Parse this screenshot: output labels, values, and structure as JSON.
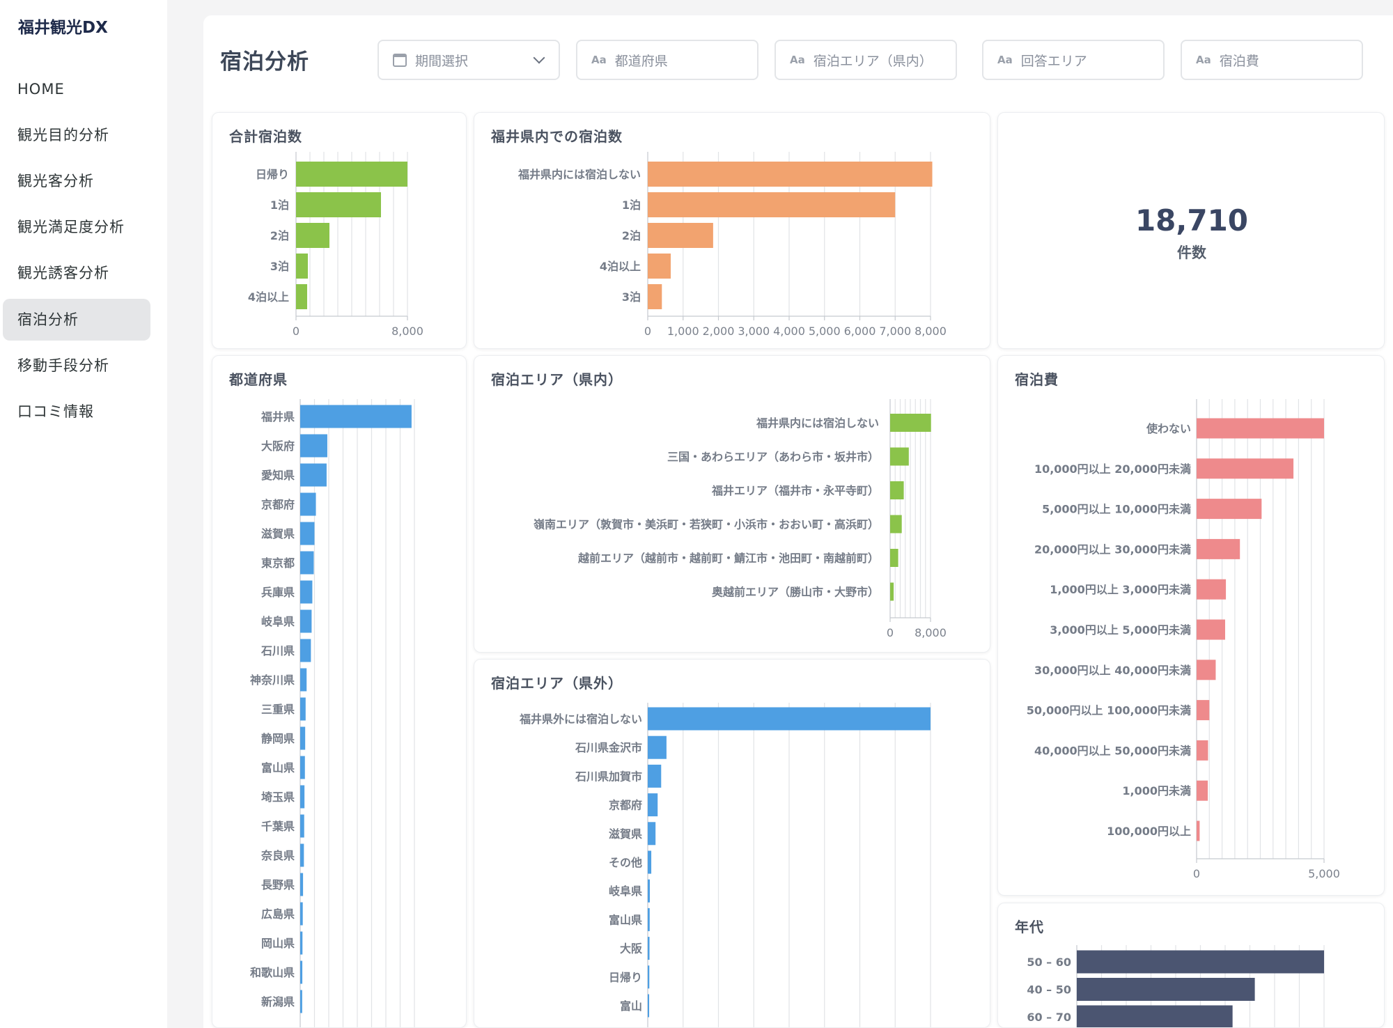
{
  "app": {
    "brand": "福井観光DX"
  },
  "sidebar": {
    "items": [
      {
        "label": "HOME"
      },
      {
        "label": "観光目的分析"
      },
      {
        "label": "観光客分析"
      },
      {
        "label": "観光満足度分析"
      },
      {
        "label": "観光誘客分析"
      },
      {
        "label": "宿泊分析",
        "active": true
      },
      {
        "label": "移動手段分析"
      },
      {
        "label": "口コミ情報"
      }
    ]
  },
  "header": {
    "title": "宿泊分析",
    "filters": [
      {
        "label": "期間選択",
        "icon": "calendar-icon",
        "dropdown": true
      },
      {
        "label": "都道府県",
        "icon": "text-aa-icon"
      },
      {
        "label": "宿泊エリア（県内）",
        "icon": "text-aa-icon"
      },
      {
        "label": "回答エリア",
        "icon": "text-aa-icon"
      },
      {
        "label": "宿泊費",
        "icon": "text-aa-icon"
      }
    ]
  },
  "kpi": {
    "value": "18,710",
    "label": "件数"
  },
  "colors": {
    "green": "#8bc34a",
    "orange": "#f2a36f",
    "blue": "#4e9fe3",
    "pink": "#ee8a8c",
    "navy": "#4b5571"
  },
  "chart_data": [
    {
      "id": "total",
      "type": "bar",
      "orientation": "horizontal",
      "title": "合計宿泊数",
      "categories": [
        "日帰り",
        "1泊",
        "2泊",
        "3泊",
        "4泊以上"
      ],
      "values": [
        8000,
        6100,
        2400,
        850,
        800
      ],
      "xlim": [
        0,
        8000
      ],
      "ticks": [
        "0",
        "8,000"
      ],
      "tick_values": [
        0,
        8000
      ],
      "color": "#8bc34a"
    },
    {
      "id": "fukui",
      "type": "bar",
      "orientation": "horizontal",
      "title": "福井県内での宿泊数",
      "categories": [
        "福井県内には宿泊しない",
        "1泊",
        "2泊",
        "4泊以上",
        "3泊"
      ],
      "values": [
        8050,
        7000,
        1850,
        650,
        400
      ],
      "xlim": [
        0,
        8000
      ],
      "ticks": [
        "0",
        "1,000",
        "2,000",
        "3,000",
        "4,000",
        "5,000",
        "6,000",
        "7,000",
        "8,000"
      ],
      "tick_values": [
        0,
        1000,
        2000,
        3000,
        4000,
        5000,
        6000,
        7000,
        8000
      ],
      "color": "#f2a36f"
    },
    {
      "id": "pref",
      "type": "bar",
      "orientation": "horizontal",
      "title": "都道府県",
      "categories": [
        "福井県",
        "大阪府",
        "愛知県",
        "京都府",
        "滋賀県",
        "東京都",
        "兵庫県",
        "岐阜県",
        "石川県",
        "神奈川県",
        "三重県",
        "静岡県",
        "富山県",
        "埼玉県",
        "千葉県",
        "奈良県",
        "長野県",
        "広島県",
        "岡山県",
        "和歌山県",
        "新潟県"
      ],
      "values": [
        7800,
        1900,
        1850,
        1100,
        1000,
        950,
        850,
        800,
        750,
        450,
        380,
        350,
        330,
        300,
        280,
        260,
        200,
        180,
        160,
        150,
        140
      ],
      "xlim": [
        0,
        8000
      ],
      "color": "#4e9fe3"
    },
    {
      "id": "area_in",
      "type": "bar",
      "orientation": "horizontal",
      "title": "宿泊エリア（県内）",
      "categories": [
        "福井県内には宿泊しない",
        "三国・あわらエリア（あわら市・坂井市）",
        "福井エリア（福井市・永平寺町）",
        "嶺南エリア（敦賀市・美浜町・若狭町・小浜市・おおい町・高浜町）",
        "越前エリア（越前市・越前町・鯖江市・池田町・南越前町）",
        "奥越前エリア（勝山市・大野市）"
      ],
      "values": [
        8100,
        3700,
        2700,
        2300,
        1600,
        700
      ],
      "xlim": [
        0,
        8000
      ],
      "ticks": [
        "0",
        "8,000"
      ],
      "tick_values": [
        0,
        8000
      ],
      "color": "#8bc34a"
    },
    {
      "id": "area_out",
      "type": "bar",
      "orientation": "horizontal",
      "title": "宿泊エリア（県外）",
      "categories": [
        "福井県外には宿泊しない",
        "石川県金沢市",
        "石川県加賀市",
        "京都府",
        "滋賀県",
        "その他",
        "岐阜県",
        "富山県",
        "大阪",
        "日帰り",
        "富山"
      ],
      "values": [
        8000,
        530,
        380,
        280,
        220,
        100,
        60,
        55,
        50,
        45,
        40
      ],
      "xlim": [
        0,
        8000
      ],
      "color": "#4e9fe3"
    },
    {
      "id": "cost",
      "type": "bar",
      "orientation": "horizontal",
      "title": "宿泊費",
      "categories": [
        "使わない",
        "10,000円以上 20,000円未満",
        "5,000円以上 10,000円未満",
        "20,000円以上 30,000円未満",
        "1,000円以上 3,000円未満",
        "3,000円以上 5,000円未満",
        "30,000円以上 40,000円未満",
        "50,000円以上 100,000円未満",
        "40,000円以上 50,000円未満",
        "1,000円未満",
        "100,000円以上"
      ],
      "values": [
        5000,
        3800,
        2550,
        1700,
        1150,
        1120,
        750,
        500,
        450,
        440,
        120
      ],
      "xlim": [
        0,
        5000
      ],
      "ticks": [
        "0",
        "5,000"
      ],
      "tick_values": [
        0,
        5000
      ],
      "color": "#ee8a8c"
    },
    {
      "id": "age",
      "type": "bar",
      "orientation": "horizontal",
      "title": "年代",
      "categories": [
        "50 – 60",
        "40 – 50",
        "60 – 70"
      ],
      "values": [
        5000,
        3600,
        3150
      ],
      "xlim": [
        0,
        5000
      ],
      "color": "#4b5571"
    }
  ]
}
